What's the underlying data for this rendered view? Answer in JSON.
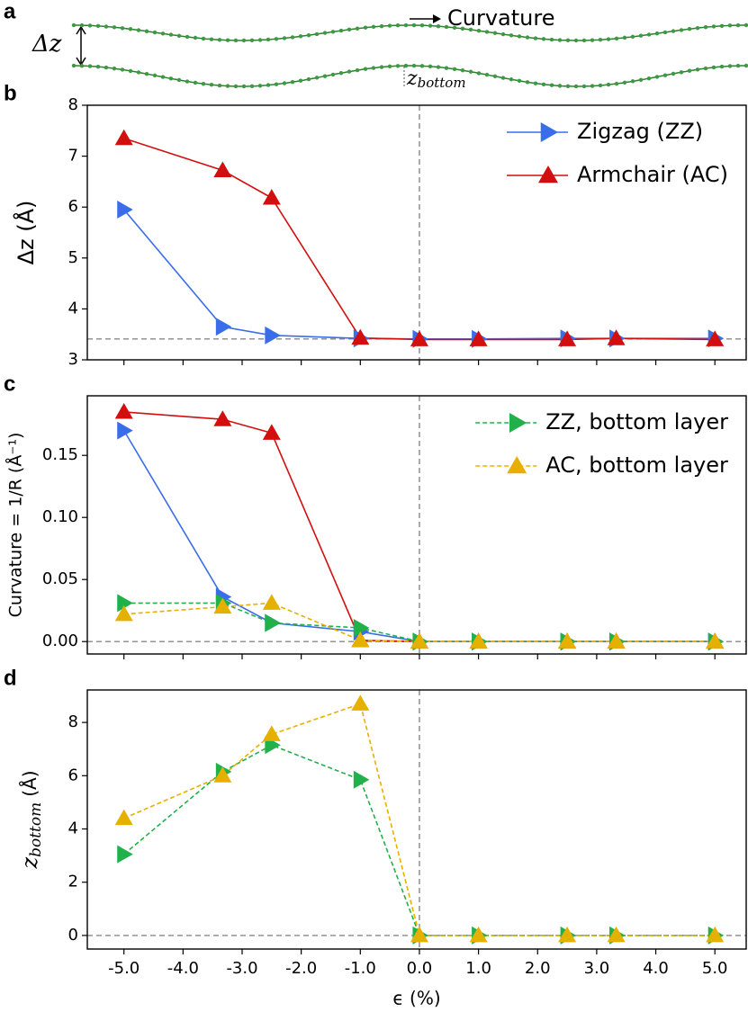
{
  "schematic": {
    "panel_label": "a",
    "delta_label": "Δz",
    "curvature_label": "Curvature",
    "zbottom_label": {
      "symbol": "z",
      "subscript": "bottom"
    }
  },
  "chart_data": [
    {
      "type": "line",
      "panel_label": "b",
      "x": [
        -5,
        -3.33,
        -2.5,
        -1,
        0,
        1,
        2.5,
        3.33,
        5
      ],
      "xlim": [
        -5.62,
        5.53
      ],
      "xticks": [
        {
          "value": -5,
          "label": "-5.0"
        },
        {
          "value": -4,
          "label": "-4.0"
        },
        {
          "value": -3,
          "label": "-3.0"
        },
        {
          "value": -2,
          "label": "-2.0"
        },
        {
          "value": -1,
          "label": "-1.0"
        },
        {
          "value": 0,
          "label": "0.0"
        },
        {
          "value": 1,
          "label": "1.0"
        },
        {
          "value": 2,
          "label": "2.0"
        },
        {
          "value": 3,
          "label": "3.0"
        },
        {
          "value": 4,
          "label": "4.0"
        },
        {
          "value": 5,
          "label": "5.0"
        }
      ],
      "ylim": [
        3,
        8
      ],
      "yticks": [
        3,
        4,
        5,
        6,
        7,
        8
      ],
      "ylabel": "Δz (Å)",
      "hline": 3.41,
      "vline": 0,
      "legend": "upper right",
      "series": [
        {
          "name": "Zigzag (ZZ)",
          "color": "#3a6ee8",
          "marker": "triangle-right",
          "linestyle": "solid",
          "values": [
            5.95,
            3.65,
            3.48,
            3.42,
            3.41,
            3.41,
            3.42,
            3.42,
            3.42
          ]
        },
        {
          "name": "Armchair (AC)",
          "color": "#d20f0f",
          "marker": "triangle-up",
          "linestyle": "solid",
          "values": [
            7.35,
            6.72,
            6.18,
            3.43,
            3.4,
            3.4,
            3.4,
            3.42,
            3.4
          ]
        }
      ]
    },
    {
      "type": "line",
      "panel_label": "c",
      "x": [
        -5,
        -3.33,
        -2.5,
        -1,
        0,
        1,
        2.5,
        3.33,
        5
      ],
      "xlim": [
        -5.62,
        5.53
      ],
      "xticks": [
        {
          "value": -5,
          "label": "-5.0"
        },
        {
          "value": -4,
          "label": "-4.0"
        },
        {
          "value": -3,
          "label": "-3.0"
        },
        {
          "value": -2,
          "label": "-2.0"
        },
        {
          "value": -1,
          "label": "-1.0"
        },
        {
          "value": 0,
          "label": "0.0"
        },
        {
          "value": 1,
          "label": "1.0"
        },
        {
          "value": 2,
          "label": "2.0"
        },
        {
          "value": 3,
          "label": "3.0"
        },
        {
          "value": 4,
          "label": "4.0"
        },
        {
          "value": 5,
          "label": "5.0"
        }
      ],
      "ylim": [
        -0.01,
        0.198
      ],
      "yticks": [
        {
          "value": 0,
          "label": "0.00"
        },
        {
          "value": 0.05,
          "label": "0.05"
        },
        {
          "value": 0.1,
          "label": "0.10"
        },
        {
          "value": 0.15,
          "label": "0.15"
        }
      ],
      "ylabel": "Curvature = 1/R (Å⁻¹)",
      "hline": 0,
      "vline": 0,
      "legend": "upper right",
      "series": [
        {
          "color": "#3a6ee8",
          "marker": "triangle-right",
          "linestyle": "solid",
          "values": [
            0.17,
            0.036,
            0.015,
            0.008,
            0.0,
            0.0,
            0.0,
            0.0,
            0.0
          ]
        },
        {
          "color": "#d20f0f",
          "marker": "triangle-up",
          "linestyle": "solid",
          "values": [
            0.185,
            0.179,
            0.168,
            0.001,
            0.0,
            0.0,
            0.0,
            0.0,
            0.0
          ]
        },
        {
          "name": "ZZ, bottom layer",
          "color": "#22b04a",
          "marker": "triangle-right",
          "linestyle": "dashed",
          "values": [
            0.031,
            0.031,
            0.015,
            0.011,
            0.0,
            0.0,
            0.0,
            0.0,
            0.0
          ]
        },
        {
          "name": "AC, bottom layer",
          "color": "#e6b000",
          "marker": "triangle-up",
          "linestyle": "dashed",
          "values": [
            0.022,
            0.028,
            0.031,
            0.001,
            0.0,
            0.0,
            0.0,
            0.0,
            0.0
          ]
        }
      ]
    },
    {
      "type": "line",
      "panel_label": "d",
      "x": [
        -5,
        -3.33,
        -2.5,
        -1,
        0,
        1,
        2.5,
        3.33,
        5
      ],
      "xlim": [
        -5.62,
        5.53
      ],
      "xticks": [
        {
          "value": -5,
          "label": "-5.0"
        },
        {
          "value": -4,
          "label": "-4.0"
        },
        {
          "value": -3,
          "label": "-3.0"
        },
        {
          "value": -2,
          "label": "-2.0"
        },
        {
          "value": -1,
          "label": "-1.0"
        },
        {
          "value": 0,
          "label": "0.0"
        },
        {
          "value": 1,
          "label": "1.0"
        },
        {
          "value": 2,
          "label": "2.0"
        },
        {
          "value": 3,
          "label": "3.0"
        },
        {
          "value": 4,
          "label": "4.0"
        },
        {
          "value": 5,
          "label": "5.0"
        }
      ],
      "xlabel": "ϵ (%)",
      "ylim": [
        -0.51,
        9.22
      ],
      "yticks": [
        0,
        2,
        4,
        6,
        8
      ],
      "ylabel": {
        "symbol": "z",
        "subscript": "bottom",
        "unit": "(Å)"
      },
      "hline": 0,
      "vline": 0,
      "series": [
        {
          "color": "#22b04a",
          "marker": "triangle-right",
          "linestyle": "dashed",
          "values": [
            3.05,
            6.15,
            7.15,
            5.85,
            0,
            0,
            0,
            0,
            0
          ]
        },
        {
          "color": "#e6b000",
          "marker": "triangle-up",
          "linestyle": "dashed",
          "values": [
            4.4,
            6.0,
            7.55,
            8.7,
            0,
            0,
            0,
            0,
            0
          ]
        }
      ]
    }
  ]
}
